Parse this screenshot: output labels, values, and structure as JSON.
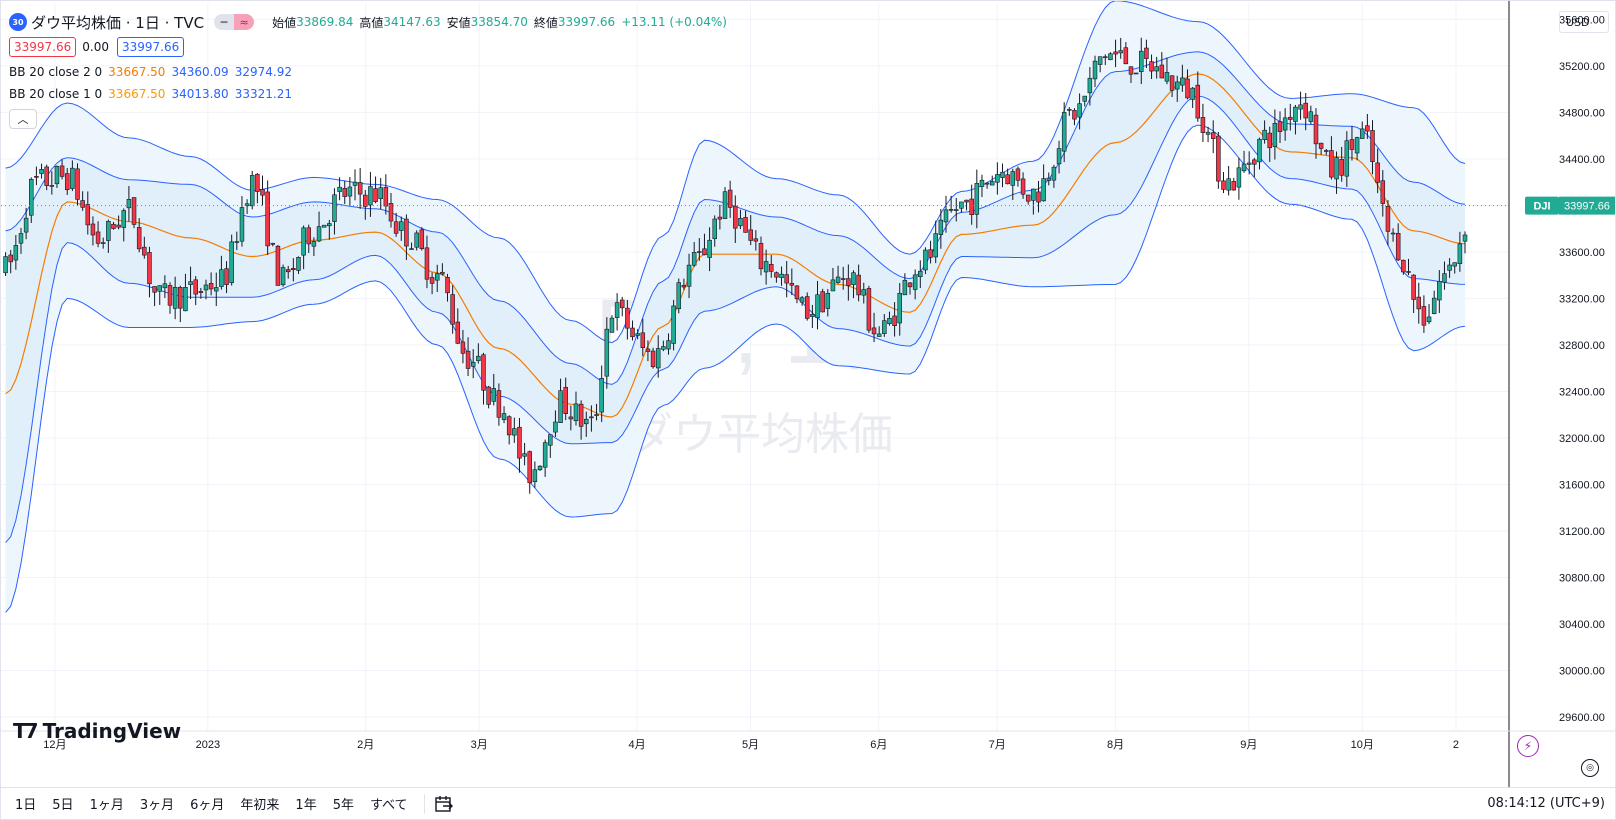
{
  "header": {
    "badge": "30",
    "symbol_title": "ダウ平均株価 · 1日 · TVC",
    "open_label": "始値",
    "open": "33869.84",
    "high_label": "高値",
    "high": "34147.63",
    "low_label": "安値",
    "low": "33854.70",
    "close_label": "終値",
    "close": "33997.66",
    "change": "+13.11 (+0.04%)",
    "price_box_left": "33997.66",
    "spread": "0.00",
    "price_box_right": "33997.66"
  },
  "indicators": [
    {
      "name": "BB 20 close 2 0",
      "basis": "33667.50",
      "upper": "34360.09",
      "lower": "32974.92"
    },
    {
      "name": "BB 20 close 1 0",
      "basis": "33667.50",
      "upper": "34013.80",
      "lower": "33321.21"
    }
  ],
  "currency": "USD",
  "watermark": {
    "symbol": "DJI, 1日",
    "name": "ダウ平均株価"
  },
  "last_price_label": {
    "ticker": "DJI",
    "value": "33997.66"
  },
  "logo_text": "TradingView",
  "bottom_bar": {
    "ranges": [
      "1日",
      "5日",
      "1ヶ月",
      "3ヶ月",
      "6ヶ月",
      "年初来",
      "1年",
      "5年",
      "すべて"
    ],
    "clock": "08:14:12 (UTC+9)"
  },
  "colors": {
    "up": "#22ab94",
    "down": "#f23645",
    "basis": "#f57c00",
    "bands": "#2962ff",
    "fill": "#e3f2fd"
  },
  "chart_data": {
    "type": "candlestick",
    "y_axis_ticks": [
      29600,
      30000,
      30400,
      30800,
      31200,
      31600,
      32000,
      32400,
      32800,
      33200,
      33600,
      34000,
      34400,
      34800,
      35200,
      35600
    ],
    "ylim": [
      29480,
      35740
    ],
    "x_axis_labels": [
      "12月",
      "2023",
      "2月",
      "3月",
      "4月",
      "5月",
      "6月",
      "7月",
      "8月",
      "9月",
      "10月",
      "2"
    ],
    "x_label_positions": [
      10,
      41,
      73,
      96,
      128,
      151,
      177,
      201,
      225,
      252,
      275,
      294
    ],
    "n_bars": 288,
    "last_close": 33997.66,
    "series": [
      {
        "name": "BB 20 close 2 0 upper",
        "points": [
          [
            0,
            34320
          ],
          [
            12,
            34880
          ],
          [
            24,
            34580
          ],
          [
            36,
            34420
          ],
          [
            48,
            34130
          ],
          [
            60,
            34240
          ],
          [
            72,
            34180
          ],
          [
            84,
            34050
          ],
          [
            96,
            33720
          ],
          [
            110,
            33010
          ],
          [
            118,
            32820
          ],
          [
            128,
            33740
          ],
          [
            136,
            34560
          ],
          [
            150,
            34230
          ],
          [
            162,
            34090
          ],
          [
            176,
            33580
          ],
          [
            186,
            34120
          ],
          [
            200,
            34380
          ],
          [
            216,
            35760
          ],
          [
            232,
            35580
          ],
          [
            250,
            34920
          ],
          [
            262,
            34960
          ],
          [
            274,
            34840
          ],
          [
            284,
            34360
          ]
        ]
      },
      {
        "name": "BB 20 close 2 0 lower",
        "points": [
          [
            0,
            30500
          ],
          [
            12,
            33200
          ],
          [
            24,
            32950
          ],
          [
            36,
            32950
          ],
          [
            48,
            33000
          ],
          [
            60,
            33150
          ],
          [
            72,
            33350
          ],
          [
            84,
            32800
          ],
          [
            96,
            31820
          ],
          [
            110,
            31320
          ],
          [
            118,
            31350
          ],
          [
            128,
            32280
          ],
          [
            136,
            32600
          ],
          [
            150,
            32980
          ],
          [
            162,
            32620
          ],
          [
            176,
            32550
          ],
          [
            186,
            33380
          ],
          [
            200,
            33300
          ],
          [
            216,
            33320
          ],
          [
            232,
            34690
          ],
          [
            250,
            34010
          ],
          [
            262,
            33880
          ],
          [
            274,
            32750
          ],
          [
            284,
            32960
          ]
        ]
      },
      {
        "name": "BB 20 close 1 0 upper",
        "points": [
          [
            0,
            33780
          ],
          [
            12,
            34410
          ],
          [
            24,
            34220
          ],
          [
            36,
            34180
          ],
          [
            48,
            33900
          ],
          [
            60,
            34030
          ],
          [
            72,
            33970
          ],
          [
            84,
            33770
          ],
          [
            96,
            33180
          ],
          [
            110,
            32640
          ],
          [
            118,
            32460
          ],
          [
            128,
            33350
          ],
          [
            136,
            34050
          ],
          [
            150,
            33900
          ],
          [
            162,
            33740
          ],
          [
            176,
            33370
          ],
          [
            186,
            33940
          ],
          [
            200,
            34130
          ],
          [
            216,
            35150
          ],
          [
            232,
            35320
          ],
          [
            250,
            34700
          ],
          [
            262,
            34680
          ],
          [
            274,
            34200
          ],
          [
            284,
            34010
          ]
        ]
      },
      {
        "name": "BB 20 close 1 0 lower",
        "points": [
          [
            0,
            31100
          ],
          [
            12,
            33680
          ],
          [
            24,
            33330
          ],
          [
            36,
            33210
          ],
          [
            48,
            33210
          ],
          [
            60,
            33360
          ],
          [
            72,
            33570
          ],
          [
            84,
            33080
          ],
          [
            96,
            32360
          ],
          [
            110,
            31950
          ],
          [
            118,
            31960
          ],
          [
            128,
            32590
          ],
          [
            136,
            33090
          ],
          [
            150,
            33300
          ],
          [
            162,
            32940
          ],
          [
            176,
            32790
          ],
          [
            186,
            33560
          ],
          [
            200,
            33550
          ],
          [
            216,
            33920
          ],
          [
            232,
            34940
          ],
          [
            250,
            34230
          ],
          [
            262,
            34140
          ],
          [
            274,
            33370
          ],
          [
            284,
            33320
          ]
        ]
      },
      {
        "name": "BB 20 close basis",
        "points": [
          [
            0,
            32380
          ],
          [
            12,
            34030
          ],
          [
            24,
            33860
          ],
          [
            36,
            33720
          ],
          [
            48,
            33560
          ],
          [
            60,
            33700
          ],
          [
            72,
            33770
          ],
          [
            84,
            33420
          ],
          [
            96,
            32770
          ],
          [
            110,
            32290
          ],
          [
            118,
            32180
          ],
          [
            128,
            32960
          ],
          [
            136,
            33580
          ],
          [
            150,
            33580
          ],
          [
            162,
            33320
          ],
          [
            176,
            33080
          ],
          [
            186,
            33750
          ],
          [
            200,
            33830
          ],
          [
            216,
            34540
          ],
          [
            232,
            35130
          ],
          [
            250,
            34460
          ],
          [
            262,
            34410
          ],
          [
            274,
            33780
          ],
          [
            284,
            33670
          ]
        ]
      }
    ],
    "close_path": [
      [
        0,
        33450
      ],
      [
        6,
        34200
      ],
      [
        12,
        34250
      ],
      [
        18,
        33700
      ],
      [
        24,
        33950
      ],
      [
        30,
        33200
      ],
      [
        36,
        33250
      ],
      [
        42,
        33350
      ],
      [
        48,
        34200
      ],
      [
        54,
        33350
      ],
      [
        60,
        33800
      ],
      [
        66,
        34100
      ],
      [
        72,
        34100
      ],
      [
        78,
        33750
      ],
      [
        84,
        33400
      ],
      [
        90,
        32700
      ],
      [
        96,
        32300
      ],
      [
        102,
        31700
      ],
      [
        108,
        32300
      ],
      [
        114,
        32100
      ],
      [
        118,
        33100
      ],
      [
        126,
        32700
      ],
      [
        134,
        33500
      ],
      [
        140,
        34000
      ],
      [
        148,
        33500
      ],
      [
        156,
        33100
      ],
      [
        164,
        33400
      ],
      [
        170,
        32900
      ],
      [
        178,
        33500
      ],
      [
        186,
        34000
      ],
      [
        194,
        34300
      ],
      [
        200,
        34100
      ],
      [
        208,
        34800
      ],
      [
        214,
        35300
      ],
      [
        222,
        35200
      ],
      [
        230,
        35000
      ],
      [
        238,
        34200
      ],
      [
        246,
        34600
      ],
      [
        252,
        34900
      ],
      [
        258,
        34300
      ],
      [
        264,
        34600
      ],
      [
        270,
        33700
      ],
      [
        276,
        33050
      ],
      [
        280,
        33400
      ],
      [
        286,
        33997
      ]
    ]
  }
}
